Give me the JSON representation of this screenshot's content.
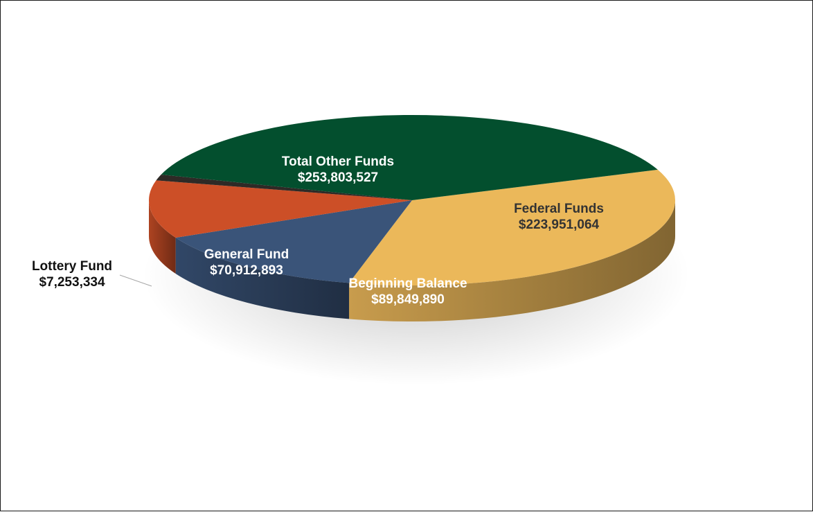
{
  "chart_data": {
    "type": "pie",
    "style": "3d",
    "title": "",
    "slices": [
      {
        "label": "Federal Funds",
        "amount": "$223,951,064",
        "value": 223951064,
        "color": "#EBB85A",
        "text_color": "#333333"
      },
      {
        "label": "Beginning Balance",
        "amount": "$89,849,890",
        "value": 89849890,
        "color": "#3A5479",
        "text_color": "#ffffff"
      },
      {
        "label": "General Fund",
        "amount": "$70,912,893",
        "value": 70912893,
        "color": "#CC4F27",
        "text_color": "#ffffff"
      },
      {
        "label": "Lottery Fund",
        "amount": "$7,253,334",
        "value": 7253334,
        "color": "#2E2A26",
        "text_color": "#111111"
      },
      {
        "label": "Total Other Funds",
        "amount": "$253,803,527",
        "value": 253803527,
        "color": "#034F2E",
        "text_color": "#ffffff"
      }
    ]
  }
}
